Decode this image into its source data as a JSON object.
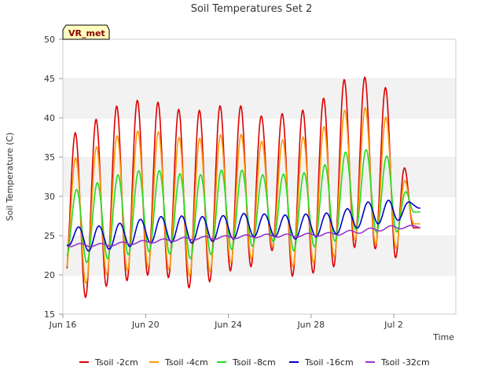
{
  "chart_data": {
    "type": "line",
    "title": "Soil Temperatures Set 2",
    "xlabel": "Time",
    "ylabel": "Soil Temperature (C)",
    "badge": "VR_met",
    "x_unit": "date",
    "xlim": [
      "2024-06-16",
      "2024-07-05"
    ],
    "ylim": [
      15,
      50
    ],
    "yticks": [
      15,
      20,
      25,
      30,
      35,
      40,
      45,
      50
    ],
    "xticks": [
      {
        "date": "2024-06-16",
        "label": "Jun 16"
      },
      {
        "date": "2024-06-20",
        "label": "Jun 20"
      },
      {
        "date": "2024-06-24",
        "label": "Jun 24"
      },
      {
        "date": "2024-06-28",
        "label": "Jun 28"
      },
      {
        "date": "2024-07-02",
        "label": "Jul 2"
      }
    ],
    "grid": "horizontal bands",
    "legend_position": "bottom",
    "series_daily_extremes_note": "each series listed as [date, daily min, daily max]",
    "series": [
      {
        "name": "Tsoil -2cm",
        "color": "#dd0000",
        "daily": [
          [
            "2024-06-16",
            19.5,
            38.2
          ],
          [
            "2024-06-17",
            17.0,
            38.0
          ],
          [
            "2024-06-18",
            18.5,
            41.0
          ],
          [
            "2024-06-19",
            19.2,
            41.8
          ],
          [
            "2024-06-20",
            20.0,
            42.5
          ],
          [
            "2024-06-21",
            19.8,
            41.6
          ],
          [
            "2024-06-22",
            18.3,
            40.7
          ],
          [
            "2024-06-23",
            19.0,
            41.1
          ],
          [
            "2024-06-24",
            20.5,
            41.8
          ],
          [
            "2024-06-25",
            20.8,
            41.3
          ],
          [
            "2024-06-26",
            23.5,
            39.5
          ],
          [
            "2024-06-27",
            19.8,
            41.2
          ],
          [
            "2024-06-28",
            20.2,
            40.8
          ],
          [
            "2024-06-29",
            20.8,
            43.6
          ],
          [
            "2024-06-30",
            23.5,
            45.7
          ],
          [
            "2024-07-01",
            23.5,
            44.8
          ],
          [
            "2024-07-02",
            21.8,
            43.2
          ],
          [
            "2024-07-03",
            26.0,
            26.0
          ]
        ]
      },
      {
        "name": "Tsoil -4cm",
        "color": "#ff9900",
        "daily": [
          [
            "2024-06-16",
            20.5,
            35.0
          ],
          [
            "2024-06-17",
            18.8,
            34.8
          ],
          [
            "2024-06-18",
            20.0,
            37.2
          ],
          [
            "2024-06-19",
            20.5,
            38.0
          ],
          [
            "2024-06-20",
            21.0,
            38.5
          ],
          [
            "2024-06-21",
            20.8,
            38.0
          ],
          [
            "2024-06-22",
            19.8,
            37.2
          ],
          [
            "2024-06-23",
            20.3,
            37.5
          ],
          [
            "2024-06-24",
            21.5,
            38.0
          ],
          [
            "2024-06-25",
            21.8,
            37.8
          ],
          [
            "2024-06-26",
            24.0,
            36.5
          ],
          [
            "2024-06-27",
            21.0,
            37.6
          ],
          [
            "2024-06-28",
            21.5,
            37.5
          ],
          [
            "2024-06-29",
            22.0,
            39.7
          ],
          [
            "2024-06-30",
            24.5,
            41.7
          ],
          [
            "2024-07-01",
            24.0,
            41.0
          ],
          [
            "2024-07-02",
            23.0,
            39.5
          ],
          [
            "2024-07-03",
            26.5,
            26.5
          ]
        ]
      },
      {
        "name": "Tsoil -8cm",
        "color": "#22dd22",
        "daily": [
          [
            "2024-06-16",
            22.5,
            31.0
          ],
          [
            "2024-06-17",
            21.5,
            30.8
          ],
          [
            "2024-06-18",
            22.0,
            32.2
          ],
          [
            "2024-06-19",
            22.5,
            33.0
          ],
          [
            "2024-06-20",
            23.0,
            33.4
          ],
          [
            "2024-06-21",
            22.8,
            33.2
          ],
          [
            "2024-06-22",
            22.0,
            32.7
          ],
          [
            "2024-06-23",
            22.5,
            32.8
          ],
          [
            "2024-06-24",
            23.2,
            33.6
          ],
          [
            "2024-06-25",
            23.5,
            33.2
          ],
          [
            "2024-06-26",
            24.5,
            32.5
          ],
          [
            "2024-06-27",
            23.0,
            33.0
          ],
          [
            "2024-06-28",
            23.5,
            33.0
          ],
          [
            "2024-06-29",
            24.0,
            34.5
          ],
          [
            "2024-06-30",
            25.8,
            36.2
          ],
          [
            "2024-07-01",
            25.5,
            35.8
          ],
          [
            "2024-07-02",
            25.0,
            34.8
          ],
          [
            "2024-07-03",
            28.0,
            28.0
          ]
        ]
      },
      {
        "name": "Tsoil -16cm",
        "color": "#0000cc",
        "daily": [
          [
            "2024-06-16",
            24.0,
            25.5
          ],
          [
            "2024-06-17",
            23.0,
            26.3
          ],
          [
            "2024-06-18",
            23.2,
            26.2
          ],
          [
            "2024-06-19",
            23.5,
            26.7
          ],
          [
            "2024-06-20",
            24.0,
            27.2
          ],
          [
            "2024-06-21",
            24.2,
            27.5
          ],
          [
            "2024-06-22",
            24.0,
            27.5
          ],
          [
            "2024-06-23",
            24.2,
            27.4
          ],
          [
            "2024-06-24",
            24.5,
            27.6
          ],
          [
            "2024-06-25",
            24.8,
            27.9
          ],
          [
            "2024-06-26",
            25.0,
            27.7
          ],
          [
            "2024-06-27",
            24.5,
            27.6
          ],
          [
            "2024-06-28",
            24.8,
            27.8
          ],
          [
            "2024-06-29",
            25.0,
            27.9
          ],
          [
            "2024-06-30",
            25.8,
            28.6
          ],
          [
            "2024-07-01",
            26.5,
            29.5
          ],
          [
            "2024-07-02",
            26.5,
            29.5
          ],
          [
            "2024-07-03",
            28.5,
            29.2
          ]
        ]
      },
      {
        "name": "Tsoil -32cm",
        "color": "#9933cc",
        "daily": [
          [
            "2024-06-16",
            23.6,
            24.0
          ],
          [
            "2024-06-17",
            23.6,
            24.0
          ],
          [
            "2024-06-18",
            23.6,
            24.0
          ],
          [
            "2024-06-19",
            23.8,
            24.2
          ],
          [
            "2024-06-20",
            24.0,
            24.4
          ],
          [
            "2024-06-21",
            24.2,
            24.6
          ],
          [
            "2024-06-22",
            24.4,
            24.8
          ],
          [
            "2024-06-23",
            24.5,
            24.9
          ],
          [
            "2024-06-24",
            24.6,
            25.0
          ],
          [
            "2024-06-25",
            24.7,
            25.1
          ],
          [
            "2024-06-26",
            24.8,
            25.2
          ],
          [
            "2024-06-27",
            24.8,
            25.2
          ],
          [
            "2024-06-28",
            24.9,
            25.3
          ],
          [
            "2024-06-29",
            25.0,
            25.4
          ],
          [
            "2024-06-30",
            25.2,
            25.7
          ],
          [
            "2024-07-01",
            25.5,
            26.0
          ],
          [
            "2024-07-02",
            25.8,
            26.3
          ],
          [
            "2024-07-03",
            26.0,
            26.3
          ]
        ]
      }
    ]
  }
}
